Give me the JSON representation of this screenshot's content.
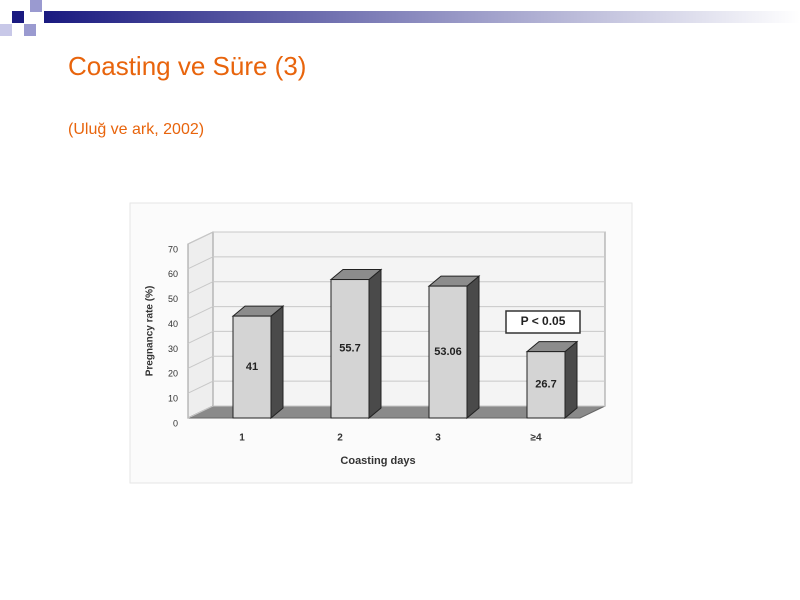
{
  "slide": {
    "title": "Coasting ve Süre (3)",
    "subtitle": "(Uluğ ve ark, 2002)"
  },
  "chart_data": {
    "type": "bar3d",
    "x_label": "Coasting days",
    "y_label": "Pregnancy rate (%)",
    "annotation": "P < 0.05",
    "categories": [
      "1",
      "2",
      "3",
      "≥4"
    ],
    "values": [
      41,
      55.7,
      53.06,
      26.7
    ],
    "color": "#d4d4d4",
    "ylim": [
      0,
      70
    ],
    "yticks": [
      0,
      10,
      20,
      30,
      40,
      50,
      60,
      70
    ],
    "grid": true
  }
}
